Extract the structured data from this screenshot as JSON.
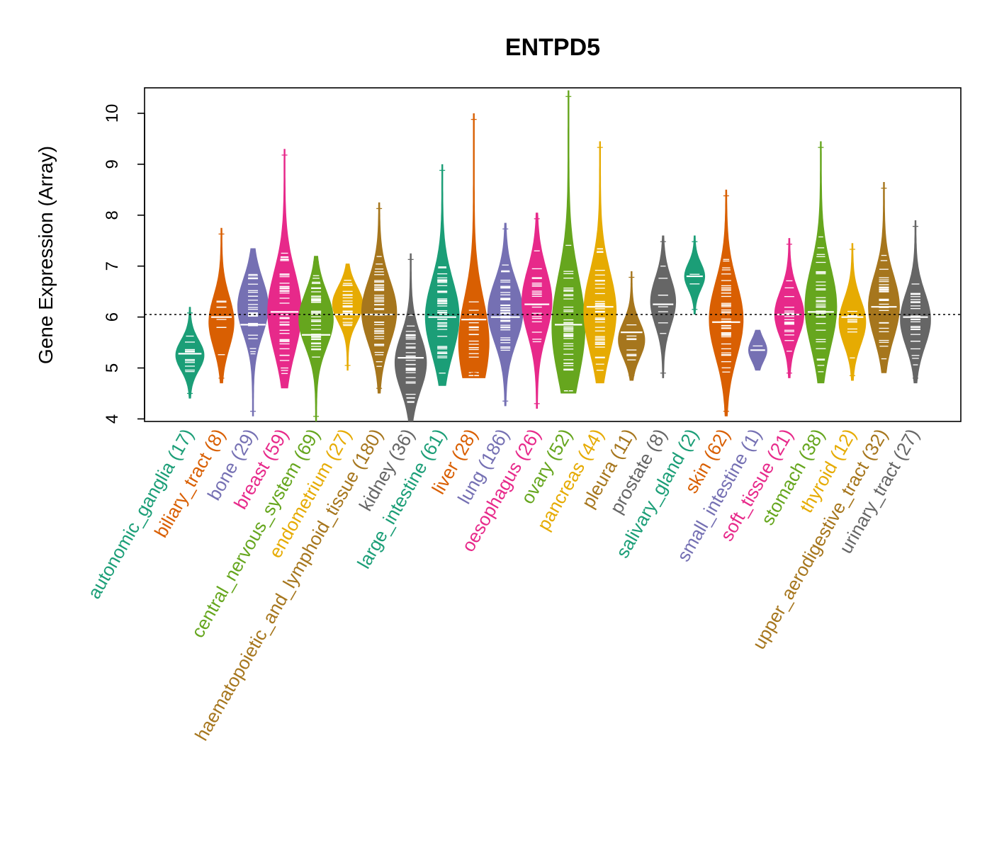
{
  "chart_data": {
    "type": "beanplot",
    "title": "ENTPD5",
    "ylabel": "Gene Expression (Array)",
    "xlabel": "",
    "ylim": [
      3.95,
      10.5
    ],
    "yticks": [
      4,
      5,
      6,
      7,
      8,
      9,
      10
    ],
    "reference_line": 6.05,
    "categories": [
      {
        "name": "autonomic_ganglia",
        "n": 17,
        "label": "autonomic_ganglia (17)",
        "color": "#1B9E77",
        "min": 4.4,
        "max": 6.2,
        "mode": 5.25,
        "mean": 5.28
      },
      {
        "name": "biliary_tract",
        "n": 8,
        "label": "biliary_tract (8)",
        "color": "#D95F02",
        "min": 4.7,
        "max": 7.75,
        "mode": 5.9,
        "mean": 6.0
      },
      {
        "name": "bone",
        "n": 29,
        "label": "bone (29)",
        "color": "#7570B3",
        "min": 4.05,
        "max": 7.35,
        "mode": 6.2,
        "mean": 5.85
      },
      {
        "name": "breast",
        "n": 59,
        "label": "breast (59)",
        "color": "#E7298A",
        "min": 4.6,
        "max": 9.3,
        "mode": 6.1,
        "mean": 6.1
      },
      {
        "name": "central_nervous_system",
        "n": 69,
        "label": "central_nervous_system (69)",
        "color": "#66A61E",
        "min": 3.95,
        "max": 7.2,
        "mode": 5.95,
        "mean": 5.65
      },
      {
        "name": "endometrium",
        "n": 27,
        "label": "endometrium (27)",
        "color": "#E6AB02",
        "min": 4.95,
        "max": 7.05,
        "mode": 6.25,
        "mean": 6.05
      },
      {
        "name": "haematopoietic_and_lymphoid_tissue",
        "n": 180,
        "label": "haematopoietic_and_lymphoid_tissue (180)",
        "color": "#A6761D",
        "min": 4.5,
        "max": 8.25,
        "mode": 6.1,
        "mean": 6.05
      },
      {
        "name": "kidney",
        "n": 36,
        "label": "kidney (36)",
        "color": "#666666",
        "min": 3.95,
        "max": 7.25,
        "mode": 5.1,
        "mean": 5.2
      },
      {
        "name": "large_intestine",
        "n": 61,
        "label": "large_intestine (61)",
        "color": "#1B9E77",
        "min": 4.65,
        "max": 9.0,
        "mode": 6.0,
        "mean": 6.0
      },
      {
        "name": "liver",
        "n": 28,
        "label": "liver (28)",
        "color": "#D95F02",
        "min": 4.8,
        "max": 10.0,
        "mode": 5.5,
        "mean": 5.95
      },
      {
        "name": "lung",
        "n": 186,
        "label": "lung (186)",
        "color": "#7570B3",
        "min": 4.25,
        "max": 7.85,
        "mode": 6.1,
        "mean": 6.0
      },
      {
        "name": "oesophagus",
        "n": 26,
        "label": "oesophagus (26)",
        "color": "#E7298A",
        "min": 4.2,
        "max": 8.05,
        "mode": 6.3,
        "mean": 6.25
      },
      {
        "name": "ovary",
        "n": 52,
        "label": "ovary (52)",
        "color": "#66A61E",
        "min": 4.5,
        "max": 10.45,
        "mode": 5.8,
        "mean": 5.85
      },
      {
        "name": "pancreas",
        "n": 44,
        "label": "pancreas (44)",
        "color": "#E6AB02",
        "min": 4.7,
        "max": 9.45,
        "mode": 6.1,
        "mean": 6.2
      },
      {
        "name": "pleura",
        "n": 11,
        "label": "pleura (11)",
        "color": "#A6761D",
        "min": 4.75,
        "max": 6.9,
        "mode": 5.55,
        "mean": 5.7
      },
      {
        "name": "prostate",
        "n": 8,
        "label": "prostate (8)",
        "color": "#666666",
        "min": 4.8,
        "max": 7.6,
        "mode": 6.3,
        "mean": 6.25
      },
      {
        "name": "salivary_gland",
        "n": 2,
        "label": "salivary_gland (2)",
        "color": "#1B9E77",
        "min": 6.05,
        "max": 7.6,
        "mode": 6.8,
        "mean": 6.8
      },
      {
        "name": "skin",
        "n": 62,
        "label": "skin (62)",
        "color": "#D95F02",
        "min": 4.05,
        "max": 8.5,
        "mode": 5.95,
        "mean": 5.9
      },
      {
        "name": "small_intestine",
        "n": 1,
        "label": "small_intestine (1)",
        "color": "#7570B3",
        "min": 4.95,
        "max": 5.75,
        "mode": 5.35,
        "mean": 5.35
      },
      {
        "name": "soft_tissue",
        "n": 21,
        "label": "soft_tissue (21)",
        "color": "#E7298A",
        "min": 4.8,
        "max": 7.55,
        "mode": 6.05,
        "mean": 6.05
      },
      {
        "name": "stomach",
        "n": 38,
        "label": "stomach (38)",
        "color": "#66A61E",
        "min": 4.7,
        "max": 9.45,
        "mode": 6.2,
        "mean": 6.1
      },
      {
        "name": "thyroid",
        "n": 12,
        "label": "thyroid (12)",
        "color": "#E6AB02",
        "min": 4.75,
        "max": 7.45,
        "mode": 5.9,
        "mean": 6.0
      },
      {
        "name": "upper_aerodigestive_tract",
        "n": 32,
        "label": "upper_aerodigestive_tract (32)",
        "color": "#A6761D",
        "min": 4.9,
        "max": 8.65,
        "mode": 6.2,
        "mean": 6.2
      },
      {
        "name": "urinary_tract",
        "n": 27,
        "label": "urinary_tract (27)",
        "color": "#666666",
        "min": 4.7,
        "max": 7.9,
        "mode": 5.95,
        "mean": 6.0
      }
    ]
  }
}
